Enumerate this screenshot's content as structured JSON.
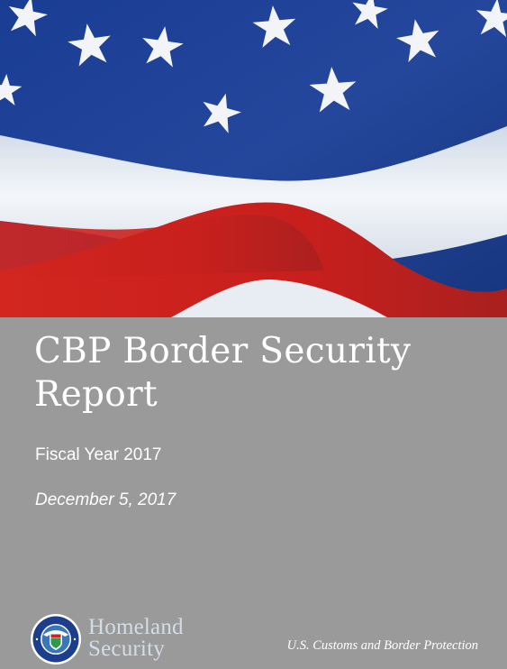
{
  "cover": {
    "title_line1": "CBP Border Security",
    "title_line2": "Report",
    "subtitle": "Fiscal Year 2017",
    "date": "December 5, 2017"
  },
  "footer": {
    "dhs_logo_word1": "Homeland",
    "dhs_logo_word2": "Security",
    "seal_text": "U.S. DEPARTMENT OF HOMELAND SECURITY",
    "agency": "U.S. Customs and Border Protection"
  },
  "colors": {
    "flag_blue": "#1f3f8f",
    "flag_red": "#d42a22",
    "flag_white": "#eef2f6",
    "panel_gray": "#9a9a9a"
  },
  "icons": {
    "flag": "american-flag-image",
    "seal": "dhs-seal-icon"
  }
}
